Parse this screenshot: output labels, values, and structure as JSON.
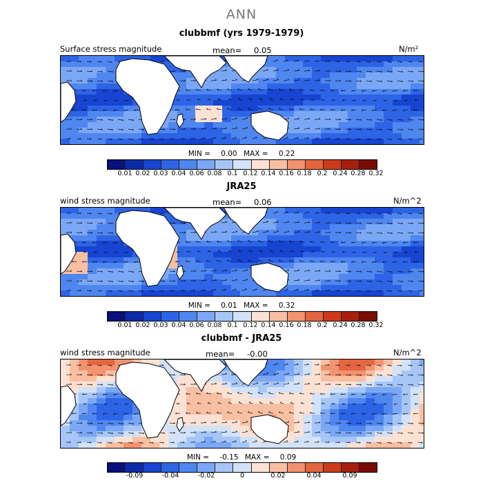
{
  "title": "ANN",
  "colormap": [
    "#08107a",
    "#0c2aa8",
    "#1744d0",
    "#2d64e6",
    "#4f86f0",
    "#7ba8f6",
    "#a6c6f8",
    "#d2e2f8",
    "#fde2d4",
    "#f9bfa2",
    "#f2936f",
    "#e4653f",
    "#cd3a1b",
    "#a81e0c",
    "#790c05"
  ],
  "panels": [
    {
      "title": "clubbmf (yrs 1979-1979)",
      "left_label": "Surface stress magnitude",
      "mean_label": "mean=",
      "mean_value": "0.05",
      "units": "N/m²",
      "min_label": "MIN =",
      "min_value": "0.00",
      "max_label": "MAX =",
      "max_value": "0.22",
      "colorbar_labels": [
        "0.01",
        "0.02",
        "0.03",
        "0.04",
        "0.06",
        "0.08",
        "0.1",
        "0.12",
        "0.14",
        "0.16",
        "0.18",
        "0.2",
        "0.24",
        "0.28",
        "0.32"
      ]
    },
    {
      "title": "JRA25",
      "left_label": "wind stress magnitude",
      "mean_label": "mean=",
      "mean_value": "0.06",
      "units": "N/m^2",
      "min_label": "MIN =",
      "min_value": "0.01",
      "max_label": "MAX =",
      "max_value": "0.32",
      "colorbar_labels": [
        "0.01",
        "0.02",
        "0.03",
        "0.04",
        "0.06",
        "0.08",
        "0.1",
        "0.12",
        "0.14",
        "0.16",
        "0.18",
        "0.2",
        "0.24",
        "0.28",
        "0.32"
      ]
    },
    {
      "title": "clubbmf - JRA25",
      "left_label": "wind stress magnitude",
      "mean_label": "mean=",
      "mean_value": "-0.00",
      "units": "N/m^2",
      "min_label": "MIN =",
      "min_value": "-0.15",
      "max_label": "MAX =",
      "max_value": "0.09",
      "colorbar_labels": [
        "-0.09",
        "-0.04",
        "-0.02",
        "0",
        "0.02",
        "0.04",
        "0.09"
      ]
    }
  ],
  "chart_data": [
    {
      "type": "heatmap",
      "title": "clubbmf (yrs 1979-1979)",
      "variable": "Surface stress magnitude",
      "units": "N/m²",
      "mean": 0.05,
      "min": 0.0,
      "max": 0.22,
      "color_levels": [
        0.01,
        0.02,
        0.03,
        0.04,
        0.06,
        0.08,
        0.1,
        0.12,
        0.14,
        0.16,
        0.18,
        0.2,
        0.24,
        0.28,
        0.32
      ],
      "field_type": "magnitude"
    },
    {
      "type": "heatmap",
      "title": "JRA25",
      "variable": "wind stress magnitude",
      "units": "N/m^2",
      "mean": 0.06,
      "min": 0.01,
      "max": 0.32,
      "color_levels": [
        0.01,
        0.02,
        0.03,
        0.04,
        0.06,
        0.08,
        0.1,
        0.12,
        0.14,
        0.16,
        0.18,
        0.2,
        0.24,
        0.28,
        0.32
      ],
      "field_type": "magnitude"
    },
    {
      "type": "heatmap",
      "title": "clubbmf - JRA25",
      "variable": "wind stress magnitude",
      "units": "N/m^2",
      "mean": -0.0,
      "min": -0.15,
      "max": 0.09,
      "color_levels": [
        -0.09,
        -0.04,
        -0.02,
        0,
        0.02,
        0.04,
        0.09
      ],
      "field_type": "difference"
    }
  ]
}
